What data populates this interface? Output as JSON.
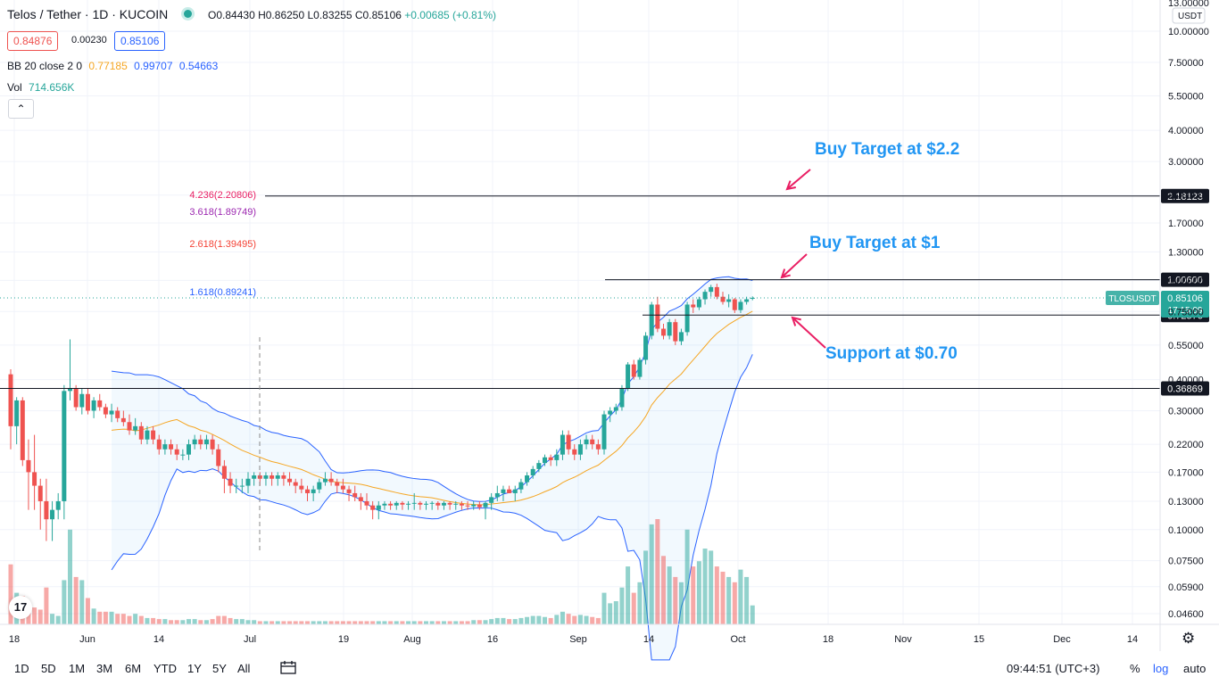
{
  "header": {
    "title": "Telos / Tether · 1D · KUCOIN",
    "open": "O0.84430",
    "high": "H0.86250",
    "low": "L0.83255",
    "close": "C0.85106",
    "change": "+0.00685 (+0.81%)"
  },
  "prices": {
    "sell": "0.84876",
    "spread": "0.00230",
    "buy": "0.85106"
  },
  "bb": {
    "label": "BB 20 close 2 0",
    "basis": "0.77185",
    "upper": "0.99707",
    "lower": "0.54663"
  },
  "vol": {
    "label": "Vol",
    "value": "714.656K"
  },
  "colors": {
    "up": "#26a69a",
    "down": "#ef5350",
    "bb": "#2962ff",
    "basis": "#f5a623",
    "annotation": "#2196f3",
    "arrow": "#e91e63"
  },
  "currency": "USDT",
  "symbol_label": "TLOSUSDT",
  "countdown": "17:15:09",
  "fib": [
    {
      "level": "4.236(2.20806)",
      "color": "#e91e63"
    },
    {
      "level": "3.618(1.89749)",
      "color": "#9c27b0"
    },
    {
      "level": "2.618(1.39495)",
      "color": "#f44336"
    },
    {
      "level": "1.618(0.89241)",
      "color": "#2962ff"
    }
  ],
  "annotations": [
    "Buy Target at $2.2",
    "Buy Target at $1",
    "Support at $0.70"
  ],
  "time_axis": [
    "18",
    "Jun",
    "14",
    "Jul",
    "19",
    "Aug",
    "16",
    "Sep",
    "14",
    "Oct",
    "18",
    "Nov",
    "15",
    "Dec",
    "14"
  ],
  "bottom": {
    "timeframes": [
      "1D",
      "5D",
      "1M",
      "3M",
      "6M",
      "YTD",
      "1Y",
      "5Y",
      "All"
    ],
    "clock": "09:44:51 (UTC+3)",
    "percent": "%",
    "log": "log",
    "auto": "auto"
  },
  "chart_data": {
    "type": "candlestick",
    "title": "Telos / Tether · 1D · KUCOIN",
    "scale": "log",
    "ylim": [
      0.04,
      13
    ],
    "y_ticks": [
      13.0,
      10.0,
      7.5,
      5.5,
      4.0,
      3.0,
      2.2,
      1.7,
      1.3,
      1.0,
      0.75,
      0.55,
      0.4,
      0.3,
      0.22,
      0.17,
      0.13,
      0.1,
      0.075,
      0.059,
      0.046
    ],
    "y_tick_labels": [
      "13.00000",
      "10.00000",
      "7.50000",
      "5.50000",
      "4.00000",
      "3.00000",
      "2.20000",
      "1.70000",
      "1.30000",
      "1.00000",
      "0.75000",
      "0.55000",
      "0.40000",
      "0.30000",
      "0.22000",
      "0.17000",
      "0.13000",
      "0.10000",
      "0.07500",
      "0.05900",
      "0.04600"
    ],
    "horizontal_levels": [
      {
        "value": 2.18123,
        "label": "2.18123"
      },
      {
        "value": 1.006,
        "label": "1.00600"
      },
      {
        "value": 0.72576,
        "label": "0.72576"
      },
      {
        "value": 0.36869,
        "label": "0.36869"
      }
    ],
    "last_price": 0.85106,
    "candles": [
      [
        0.42,
        0.44,
        0.21,
        0.26,
        0.57
      ],
      [
        0.26,
        0.34,
        0.22,
        0.33,
        0.3
      ],
      [
        0.33,
        0.34,
        0.18,
        0.19,
        0.27
      ],
      [
        0.19,
        0.23,
        0.12,
        0.17,
        0.18
      ],
      [
        0.17,
        0.24,
        0.12,
        0.15,
        0.16
      ],
      [
        0.15,
        0.16,
        0.1,
        0.13,
        0.14
      ],
      [
        0.13,
        0.16,
        0.09,
        0.11,
        0.35
      ],
      [
        0.11,
        0.13,
        0.09,
        0.12,
        0.1
      ],
      [
        0.12,
        0.14,
        0.11,
        0.13,
        0.08
      ],
      [
        0.13,
        0.38,
        0.11,
        0.36,
        0.42
      ],
      [
        0.36,
        0.58,
        0.33,
        0.37,
        0.9
      ],
      [
        0.37,
        0.38,
        0.3,
        0.31,
        0.45
      ],
      [
        0.31,
        0.37,
        0.29,
        0.35,
        0.42
      ],
      [
        0.35,
        0.37,
        0.29,
        0.3,
        0.25
      ],
      [
        0.3,
        0.34,
        0.28,
        0.33,
        0.15
      ],
      [
        0.33,
        0.35,
        0.3,
        0.31,
        0.12
      ],
      [
        0.31,
        0.32,
        0.28,
        0.29,
        0.12
      ],
      [
        0.29,
        0.32,
        0.27,
        0.3,
        0.12
      ],
      [
        0.3,
        0.31,
        0.27,
        0.28,
        0.1
      ],
      [
        0.28,
        0.3,
        0.26,
        0.27,
        0.1
      ],
      [
        0.27,
        0.29,
        0.24,
        0.25,
        0.08
      ],
      [
        0.25,
        0.28,
        0.24,
        0.26,
        0.1
      ],
      [
        0.26,
        0.27,
        0.22,
        0.23,
        0.08
      ],
      [
        0.23,
        0.26,
        0.22,
        0.25,
        0.06
      ],
      [
        0.25,
        0.26,
        0.22,
        0.23,
        0.06
      ],
      [
        0.23,
        0.24,
        0.2,
        0.21,
        0.05
      ],
      [
        0.21,
        0.23,
        0.2,
        0.22,
        0.05
      ],
      [
        0.22,
        0.23,
        0.2,
        0.21,
        0.04
      ],
      [
        0.21,
        0.22,
        0.19,
        0.2,
        0.04
      ],
      [
        0.2,
        0.21,
        0.19,
        0.2,
        0.04
      ],
      [
        0.2,
        0.23,
        0.19,
        0.22,
        0.05
      ],
      [
        0.22,
        0.24,
        0.21,
        0.23,
        0.05
      ],
      [
        0.23,
        0.24,
        0.21,
        0.22,
        0.04
      ],
      [
        0.22,
        0.24,
        0.21,
        0.23,
        0.04
      ],
      [
        0.23,
        0.24,
        0.2,
        0.21,
        0.05
      ],
      [
        0.21,
        0.22,
        0.17,
        0.18,
        0.08
      ],
      [
        0.18,
        0.19,
        0.14,
        0.16,
        0.08
      ],
      [
        0.16,
        0.17,
        0.14,
        0.15,
        0.06
      ],
      [
        0.15,
        0.16,
        0.14,
        0.15,
        0.05
      ],
      [
        0.15,
        0.16,
        0.14,
        0.15,
        0.05
      ],
      [
        0.15,
        0.17,
        0.14,
        0.16,
        0.04
      ],
      [
        0.16,
        0.17,
        0.15,
        0.165,
        0.04
      ],
      [
        0.165,
        0.17,
        0.15,
        0.16,
        0.03
      ],
      [
        0.16,
        0.17,
        0.15,
        0.165,
        0.03
      ],
      [
        0.165,
        0.17,
        0.15,
        0.16,
        0.03
      ],
      [
        0.16,
        0.17,
        0.15,
        0.165,
        0.03
      ],
      [
        0.165,
        0.17,
        0.15,
        0.16,
        0.03
      ],
      [
        0.16,
        0.17,
        0.15,
        0.155,
        0.03
      ],
      [
        0.155,
        0.16,
        0.14,
        0.15,
        0.03
      ],
      [
        0.15,
        0.16,
        0.14,
        0.145,
        0.03
      ],
      [
        0.145,
        0.15,
        0.13,
        0.14,
        0.03
      ],
      [
        0.14,
        0.15,
        0.13,
        0.145,
        0.03
      ],
      [
        0.145,
        0.16,
        0.14,
        0.155,
        0.03
      ],
      [
        0.155,
        0.17,
        0.15,
        0.16,
        0.03
      ],
      [
        0.16,
        0.17,
        0.15,
        0.155,
        0.03
      ],
      [
        0.155,
        0.16,
        0.14,
        0.15,
        0.03
      ],
      [
        0.15,
        0.16,
        0.14,
        0.145,
        0.03
      ],
      [
        0.145,
        0.15,
        0.13,
        0.14,
        0.03
      ],
      [
        0.14,
        0.15,
        0.13,
        0.135,
        0.03
      ],
      [
        0.135,
        0.14,
        0.12,
        0.13,
        0.03
      ],
      [
        0.13,
        0.14,
        0.12,
        0.125,
        0.03
      ],
      [
        0.125,
        0.13,
        0.11,
        0.12,
        0.03
      ],
      [
        0.12,
        0.13,
        0.11,
        0.125,
        0.03
      ],
      [
        0.125,
        0.13,
        0.12,
        0.127,
        0.03
      ],
      [
        0.127,
        0.13,
        0.12,
        0.125,
        0.03
      ],
      [
        0.125,
        0.13,
        0.12,
        0.128,
        0.03
      ],
      [
        0.128,
        0.13,
        0.12,
        0.126,
        0.03
      ],
      [
        0.126,
        0.13,
        0.12,
        0.127,
        0.03
      ],
      [
        0.127,
        0.14,
        0.12,
        0.128,
        0.03
      ],
      [
        0.128,
        0.13,
        0.12,
        0.126,
        0.03
      ],
      [
        0.126,
        0.13,
        0.12,
        0.127,
        0.03
      ],
      [
        0.127,
        0.13,
        0.12,
        0.128,
        0.03
      ],
      [
        0.128,
        0.13,
        0.12,
        0.125,
        0.03
      ],
      [
        0.125,
        0.13,
        0.12,
        0.128,
        0.03
      ],
      [
        0.128,
        0.13,
        0.12,
        0.126,
        0.03
      ],
      [
        0.126,
        0.13,
        0.12,
        0.127,
        0.03
      ],
      [
        0.127,
        0.13,
        0.12,
        0.125,
        0.03
      ],
      [
        0.125,
        0.13,
        0.12,
        0.124,
        0.03
      ],
      [
        0.124,
        0.13,
        0.12,
        0.126,
        0.04
      ],
      [
        0.126,
        0.13,
        0.12,
        0.123,
        0.04
      ],
      [
        0.123,
        0.13,
        0.11,
        0.128,
        0.04
      ],
      [
        0.128,
        0.14,
        0.12,
        0.135,
        0.05
      ],
      [
        0.135,
        0.15,
        0.13,
        0.14,
        0.06
      ],
      [
        0.14,
        0.15,
        0.13,
        0.145,
        0.06
      ],
      [
        0.145,
        0.15,
        0.14,
        0.14,
        0.05
      ],
      [
        0.14,
        0.15,
        0.13,
        0.145,
        0.05
      ],
      [
        0.145,
        0.16,
        0.14,
        0.155,
        0.06
      ],
      [
        0.155,
        0.17,
        0.15,
        0.165,
        0.07
      ],
      [
        0.165,
        0.18,
        0.16,
        0.175,
        0.08
      ],
      [
        0.175,
        0.19,
        0.17,
        0.185,
        0.08
      ],
      [
        0.185,
        0.2,
        0.18,
        0.195,
        0.07
      ],
      [
        0.195,
        0.2,
        0.18,
        0.19,
        0.06
      ],
      [
        0.19,
        0.21,
        0.18,
        0.2,
        0.09
      ],
      [
        0.2,
        0.25,
        0.19,
        0.24,
        0.12
      ],
      [
        0.24,
        0.25,
        0.2,
        0.21,
        0.1
      ],
      [
        0.21,
        0.22,
        0.19,
        0.2,
        0.08
      ],
      [
        0.2,
        0.23,
        0.19,
        0.22,
        0.09
      ],
      [
        0.22,
        0.24,
        0.21,
        0.23,
        0.08
      ],
      [
        0.23,
        0.24,
        0.21,
        0.22,
        0.07
      ],
      [
        0.22,
        0.23,
        0.2,
        0.21,
        0.06
      ],
      [
        0.21,
        0.3,
        0.2,
        0.29,
        0.3
      ],
      [
        0.29,
        0.31,
        0.27,
        0.3,
        0.2
      ],
      [
        0.3,
        0.32,
        0.29,
        0.31,
        0.22
      ],
      [
        0.31,
        0.38,
        0.3,
        0.37,
        0.35
      ],
      [
        0.37,
        0.47,
        0.36,
        0.46,
        0.55
      ],
      [
        0.46,
        0.48,
        0.4,
        0.41,
        0.3
      ],
      [
        0.41,
        0.49,
        0.4,
        0.48,
        0.4
      ],
      [
        0.48,
        0.62,
        0.46,
        0.6,
        0.7
      ],
      [
        0.6,
        0.82,
        0.58,
        0.8,
        0.95
      ],
      [
        0.8,
        0.86,
        0.62,
        0.64,
        1.0
      ],
      [
        0.64,
        0.67,
        0.58,
        0.6,
        0.65
      ],
      [
        0.6,
        0.7,
        0.58,
        0.68,
        0.55
      ],
      [
        0.68,
        0.7,
        0.55,
        0.57,
        0.45
      ],
      [
        0.57,
        0.64,
        0.55,
        0.62,
        0.4
      ],
      [
        0.62,
        0.82,
        0.6,
        0.8,
        0.9
      ],
      [
        0.8,
        0.84,
        0.74,
        0.78,
        0.55
      ],
      [
        0.78,
        0.86,
        0.76,
        0.84,
        0.6
      ],
      [
        0.84,
        0.92,
        0.8,
        0.9,
        0.72
      ],
      [
        0.9,
        0.96,
        0.86,
        0.94,
        0.7
      ],
      [
        0.94,
        0.97,
        0.84,
        0.86,
        0.55
      ],
      [
        0.86,
        0.9,
        0.8,
        0.82,
        0.5
      ],
      [
        0.82,
        0.88,
        0.78,
        0.84,
        0.45
      ],
      [
        0.84,
        0.85,
        0.74,
        0.76,
        0.4
      ],
      [
        0.76,
        0.84,
        0.74,
        0.82,
        0.52
      ],
      [
        0.82,
        0.86,
        0.8,
        0.84,
        0.45
      ],
      [
        0.8443,
        0.8625,
        0.83255,
        0.85106,
        0.18
      ]
    ]
  }
}
